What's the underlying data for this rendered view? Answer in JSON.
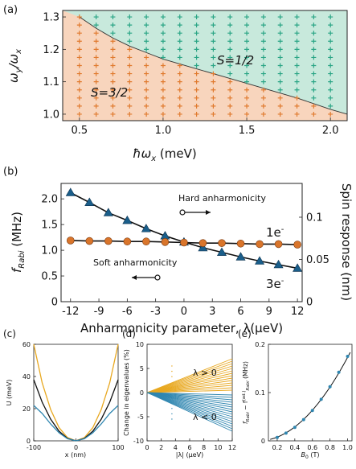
{
  "chart_data": [
    {
      "panel": "(a)",
      "type": "scatter",
      "xlabel": "ħω_x (meV)",
      "ylabel": "ω_y/ω_x",
      "xlim": [
        0.4,
        2.1
      ],
      "ylim": [
        0.98,
        1.32
      ],
      "xticks": [
        "0.5",
        "1.0",
        "1.5",
        "2.0"
      ],
      "xtick_values": [
        0.5,
        1.0,
        1.5,
        2.0
      ],
      "yticks": [
        "1.0",
        "1.1",
        "1.2",
        "1.3"
      ],
      "ytick_values": [
        1.0,
        1.1,
        1.2,
        1.3
      ],
      "region_labels": [
        "S=1/2",
        "S=3/2"
      ],
      "boundary": {
        "x": [
          0.5,
          0.6,
          0.7,
          0.8,
          0.9,
          1.0,
          1.2,
          1.4,
          1.6,
          1.8,
          2.0,
          2.1
        ],
        "y": [
          1.3,
          1.265,
          1.235,
          1.21,
          1.19,
          1.17,
          1.14,
          1.11,
          1.08,
          1.05,
          1.015,
          1.0
        ]
      },
      "grid_x_start": 0.5,
      "grid_x_end": 2.0,
      "grid_x_step": 0.1,
      "grid_y_start": 1.0,
      "grid_y_end": 1.3,
      "grid_y_step": 0.025,
      "colors": {
        "s32_fill": "#f8d5bd",
        "s12_fill": "#c8e9dc",
        "s32_marker": "#e07a2e",
        "s12_marker": "#2aa585"
      }
    },
    {
      "panel": "(b)",
      "type": "line",
      "xlabel": "Anharmonicity parameter, λ(μeV)",
      "ylabel": "f_Rabi (MHz)",
      "ylabel_right": "Spin response (nm)",
      "xlim": [
        -13,
        12.5
      ],
      "ylim": [
        0,
        2.3
      ],
      "ylim_right": [
        0,
        0.14
      ],
      "xticks": [
        "-12",
        "-9",
        "-6",
        "-3",
        "0",
        "3",
        "6",
        "9",
        "12"
      ],
      "xtick_values": [
        -12,
        -9,
        -6,
        -3,
        0,
        3,
        6,
        9,
        12
      ],
      "yticks": [
        "0",
        "0.5",
        "1.0",
        "1.5",
        "2.0"
      ],
      "ytick_values": [
        0,
        0.5,
        1.0,
        1.5,
        2.0
      ],
      "yticks_right": [
        "0",
        "0.05",
        "0.1"
      ],
      "ytick_values_right": [
        0,
        0.05,
        0.1
      ],
      "series": [
        {
          "name": "3e-",
          "marker": "triangle",
          "color": "#1a5e8a",
          "x": [
            -12,
            -10,
            -8,
            -6,
            -4,
            -2,
            0,
            2,
            4,
            6,
            8,
            10,
            12
          ],
          "values": [
            2.12,
            1.93,
            1.73,
            1.58,
            1.42,
            1.28,
            1.16,
            1.05,
            0.96,
            0.87,
            0.79,
            0.72,
            0.65
          ]
        },
        {
          "name": "1e-",
          "marker": "circle",
          "color": "#d9752b",
          "x": [
            -12,
            -10,
            -8,
            -6,
            -4,
            -2,
            0,
            2,
            4,
            6,
            8,
            10,
            12
          ],
          "values": [
            1.19,
            1.18,
            1.18,
            1.17,
            1.17,
            1.16,
            1.15,
            1.14,
            1.14,
            1.13,
            1.12,
            1.12,
            1.11
          ]
        }
      ],
      "annotations": [
        "Hard anharmonicity",
        "Soft anharmonicity"
      ]
    },
    {
      "panel": "(c)",
      "type": "line",
      "xlabel": "x (nm)",
      "ylabel": "U (meV)",
      "xlim": [
        -100,
        100
      ],
      "ylim": [
        0,
        60
      ],
      "xticks": [
        "-100",
        "0",
        "100"
      ],
      "xtick_values": [
        -100,
        0,
        100
      ],
      "yticks": [
        "0",
        "20",
        "40",
        "60"
      ],
      "ytick_values": [
        0,
        20,
        40,
        60
      ],
      "series": [
        {
          "color": "#e8a820",
          "x": [
            -100,
            -80,
            -60,
            -40,
            -20,
            0,
            20,
            40,
            60,
            80,
            100
          ],
          "values": [
            60,
            36,
            19.5,
            8.2,
            2,
            0,
            2,
            8.2,
            19.5,
            36,
            60
          ]
        },
        {
          "color": "#111111",
          "x": [
            -100,
            -80,
            -60,
            -40,
            -20,
            0,
            20,
            40,
            60,
            80,
            100
          ],
          "values": [
            38,
            24,
            13.5,
            6,
            1.5,
            0,
            1.5,
            6,
            13.5,
            24,
            38
          ]
        },
        {
          "color": "#2f86b0",
          "x": [
            -100,
            -80,
            -60,
            -40,
            -20,
            0,
            20,
            40,
            60,
            80,
            100
          ],
          "values": [
            22,
            17,
            10.5,
            5,
            1.3,
            0,
            1.3,
            5,
            10.5,
            17,
            22
          ]
        }
      ]
    },
    {
      "panel": "(d)",
      "type": "line",
      "xlabel": "|λ| (μeV)",
      "ylabel": "Change in eigenvalues (%)",
      "xlim": [
        0,
        12
      ],
      "ylim": [
        -10,
        10
      ],
      "xticks": [
        "0",
        "2",
        "4",
        "6",
        "8",
        "10",
        "12"
      ],
      "xtick_values": [
        0,
        2,
        4,
        6,
        8,
        10,
        12
      ],
      "yticks": [
        "-10",
        "-5",
        "0",
        "5",
        "10"
      ],
      "ytick_values": [
        -10,
        -5,
        0,
        5,
        10
      ],
      "fan_pos_end": [
        0.5,
        1.0,
        1.5,
        2.0,
        2.5,
        3.0,
        3.5,
        4.0,
        4.5,
        5.0,
        5.5,
        6.0,
        6.5,
        7.0
      ],
      "fan_neg_end": [
        -0.5,
        -1.0,
        -1.5,
        -2.0,
        -2.5,
        -3.0,
        -3.5,
        -4.0,
        -4.5,
        -5.0,
        -5.5,
        -6.0,
        -6.5,
        -7.0,
        -7.5,
        -8.0
      ],
      "labels": [
        "λ > 0",
        "λ < 0"
      ],
      "colors": {
        "pos": "#e8a820",
        "neg": "#2f86b0"
      }
    },
    {
      "panel": "(e)",
      "type": "scatter",
      "xlabel": "B_0 (T)",
      "ylabel": "f_Rabi − f_Rabi^(ad.) (MHz)",
      "xlim": [
        0.1,
        1.05
      ],
      "ylim": [
        0,
        0.2
      ],
      "xticks": [
        "0.2",
        "0.4",
        "0.6",
        "0.8",
        "1.0"
      ],
      "xtick_values": [
        0.2,
        0.4,
        0.6,
        0.8,
        1.0
      ],
      "yticks": [
        "0",
        "0.1",
        "0.2"
      ],
      "ytick_values": [
        0,
        0.1,
        0.2
      ],
      "x": [
        0.2,
        0.3,
        0.4,
        0.5,
        0.6,
        0.7,
        0.8,
        0.9,
        1.0
      ],
      "values": [
        0.007,
        0.016,
        0.028,
        0.044,
        0.063,
        0.086,
        0.112,
        0.142,
        0.175
      ],
      "color": "#2f86b0"
    }
  ],
  "panel_labels": [
    "(a)",
    "(b)",
    "(c)",
    "(d)",
    "(e)"
  ],
  "a": {
    "xlabel_main": "ħω",
    "xlabel_sub": "x",
    "xlabel_unit": " (meV)",
    "ylabel_main": "ω",
    "ylabel_sub1": "y",
    "ylabel_mid": "/ω",
    "ylabel_sub2": "x",
    "label_s12": "S=1/2",
    "label_s32": "S=3/2"
  },
  "b": {
    "xlabel": "Anharmonicity parameter, λ(μeV)",
    "ylabel_main": "f",
    "ylabel_sub": "Rabi",
    "ylabel_unit": " (MHz)",
    "ylabel_right": "Spin response (nm)",
    "hard": "Hard anharmonicity",
    "soft": "Soft anharmonicity",
    "series_1e": "1e",
    "series_3e": "3e",
    "minus": "-"
  },
  "c": {
    "xlabel": "x (nm)",
    "ylabel": "U (meV)"
  },
  "d": {
    "xlabel": "|λ| (μeV)",
    "ylabel": "Change in eigenvalues (%)",
    "pos": "λ > 0",
    "neg": "λ < 0"
  },
  "e": {
    "xlabel_main": "B",
    "xlabel_sub": "0",
    "xlabel_unit": " (T)",
    "ylabel_main": "f",
    "ylabel_sub": "Rabi",
    "ylabel_mid": " − f",
    "ylabel_sup": "(ad.)",
    "ylabel_sub2": "Rabi",
    "ylabel_unit": " (MHz)"
  }
}
